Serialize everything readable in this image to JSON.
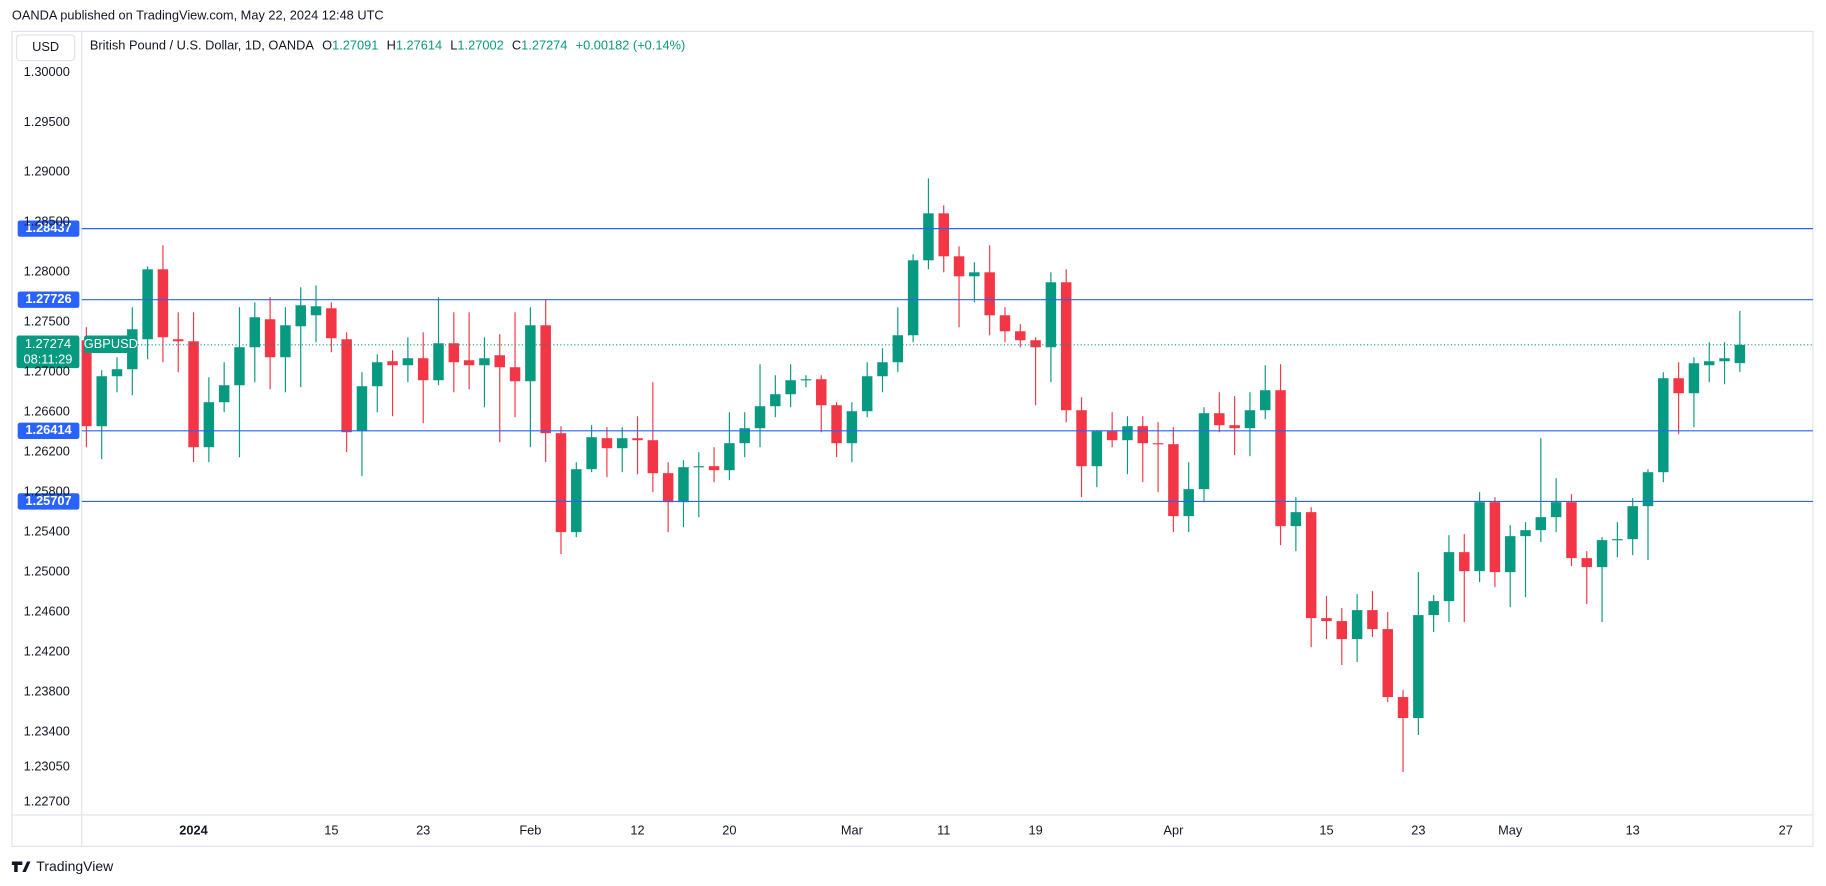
{
  "chart_data": {
    "type": "candlestick",
    "published": "OANDA published on TradingView.com, May 22, 2024 12:48 UTC",
    "currency": "USD",
    "title": "British Pound / U.S. Dollar, 1D, OANDA",
    "ohlc_labels": [
      "O",
      "H",
      "L",
      "C"
    ],
    "change": "+0.00182 (+0.14%)",
    "symbol": "GBPUSD",
    "countdown": "08:11:29",
    "brand": "TradingView",
    "up_color": "#089981",
    "down_color": "#f23645",
    "level_color": "#2962ff",
    "categories": [
      null,
      null,
      null,
      null,
      null,
      null,
      null,
      "2024",
      null,
      null,
      null,
      null,
      null,
      null,
      null,
      null,
      "15",
      null,
      null,
      null,
      null,
      null,
      "23",
      null,
      null,
      null,
      null,
      null,
      null,
      "Feb",
      null,
      null,
      null,
      null,
      null,
      null,
      "12",
      null,
      null,
      null,
      null,
      null,
      "20",
      null,
      null,
      null,
      null,
      null,
      null,
      null,
      "Mar",
      null,
      null,
      null,
      null,
      null,
      "11",
      null,
      null,
      null,
      null,
      null,
      "19",
      null,
      null,
      null,
      null,
      null,
      null,
      null,
      null,
      "Apr",
      null,
      null,
      null,
      null,
      null,
      null,
      null,
      null,
      null,
      "15",
      null,
      null,
      null,
      null,
      null,
      "23",
      null,
      null,
      null,
      null,
      null,
      "May",
      null,
      null,
      null,
      null,
      null,
      null,
      null,
      "13",
      null,
      null,
      null,
      null,
      null,
      null,
      null,
      null,
      null,
      "27"
    ],
    "open": [
      1.2732,
      1.2646,
      1.2696,
      1.2703,
      1.2733,
      1.2803,
      1.2733,
      1.2731,
      1.2625,
      1.267,
      1.2687,
      1.2725,
      1.2753,
      1.2715,
      1.2746,
      1.2757,
      1.2764,
      1.2733,
      1.2641,
      1.2686,
      1.2711,
      1.2707,
      1.2714,
      1.2692,
      1.2729,
      1.2712,
      1.2707,
      1.2717,
      1.2705,
      1.2691,
      1.2747,
      1.2639,
      1.254,
      1.2603,
      1.2634,
      1.2624,
      1.2634,
      1.2632,
      1.2599,
      1.257,
      1.2605,
      1.2606,
      1.2602,
      1.2629,
      1.2644,
      1.2666,
      1.2678,
      1.2692,
      1.2693,
      1.2667,
      1.2629,
      1.2661,
      1.2696,
      1.271,
      1.2737,
      1.2812,
      1.2859,
      1.2816,
      1.2796,
      1.28,
      1.2757,
      1.2741,
      1.2732,
      1.2725,
      1.279,
      1.2662,
      1.2606,
      1.2641,
      1.2632,
      1.2646,
      1.2629,
      1.2628,
      1.2556,
      1.2583,
      1.2659,
      1.2647,
      1.2644,
      1.2662,
      1.2682,
      1.2546,
      1.256,
      1.2454,
      1.2451,
      1.2433,
      1.2462,
      1.2443,
      1.2375,
      1.2354,
      1.2457,
      1.2471,
      1.252,
      1.2501,
      1.257,
      1.25,
      1.2536,
      1.2542,
      1.2555,
      1.257,
      1.2514,
      1.2505,
      1.2532,
      1.2533,
      1.2566,
      1.26,
      1.2694,
      1.2679,
      1.2707,
      1.2711,
      1.27091,
      null,
      null,
      null
    ],
    "high": [
      1.2745,
      1.2702,
      1.2715,
      1.2765,
      1.2806,
      1.2827,
      1.276,
      1.276,
      1.2695,
      1.271,
      1.2765,
      1.277,
      1.2775,
      1.2765,
      1.2785,
      1.2787,
      1.277,
      1.274,
      1.27,
      1.2718,
      1.2722,
      1.2735,
      1.274,
      1.2775,
      1.276,
      1.276,
      1.2735,
      1.2738,
      1.276,
      1.2765,
      1.2773,
      1.2646,
      1.261,
      1.2647,
      1.2645,
      1.2645,
      1.2656,
      1.269,
      1.261,
      1.2612,
      1.262,
      1.2625,
      1.266,
      1.266,
      1.2708,
      1.2697,
      1.2708,
      1.2697,
      1.2697,
      1.267,
      1.267,
      1.271,
      1.2724,
      1.2765,
      1.2818,
      1.2894,
      1.2867,
      1.2826,
      1.281,
      1.2827,
      1.2765,
      1.2748,
      1.2735,
      1.28,
      1.2803,
      1.2675,
      1.2642,
      1.266,
      1.2656,
      1.2656,
      1.265,
      1.2645,
      1.261,
      1.2665,
      1.268,
      1.2676,
      1.268,
      1.2707,
      1.2708,
      1.2575,
      1.2565,
      1.2476,
      1.2464,
      1.2478,
      1.2481,
      1.246,
      1.2382,
      1.25,
      1.2477,
      1.2537,
      1.2538,
      1.258,
      1.2575,
      1.2547,
      1.255,
      1.2634,
      1.2594,
      1.2578,
      1.2521,
      1.2535,
      1.255,
      1.2574,
      1.2603,
      1.27,
      1.271,
      1.2715,
      1.273,
      1.273,
      1.27614,
      null,
      null,
      null
    ],
    "low": [
      1.2625,
      1.2613,
      1.268,
      1.2677,
      1.2713,
      1.271,
      1.27,
      1.261,
      1.261,
      1.266,
      1.2615,
      1.269,
      1.2683,
      1.268,
      1.2685,
      1.273,
      1.272,
      1.262,
      1.2596,
      1.266,
      1.2656,
      1.269,
      1.2649,
      1.2687,
      1.268,
      1.2683,
      1.2665,
      1.263,
      1.2655,
      1.2625,
      1.261,
      1.2518,
      1.2535,
      1.26,
      1.2595,
      1.26,
      1.2598,
      1.258,
      1.254,
      1.2545,
      1.2555,
      1.259,
      1.2592,
      1.2615,
      1.2625,
      1.2655,
      1.2665,
      1.2685,
      1.264,
      1.2615,
      1.261,
      1.2655,
      1.268,
      1.27,
      1.273,
      1.2803,
      1.28,
      1.2745,
      1.277,
      1.2737,
      1.273,
      1.2725,
      1.2667,
      1.269,
      1.265,
      1.2575,
      1.2585,
      1.2625,
      1.2598,
      1.259,
      1.258,
      1.254,
      1.254,
      1.257,
      1.264,
      1.2617,
      1.2616,
      1.2653,
      1.2527,
      1.2521,
      1.2425,
      1.2433,
      1.2407,
      1.241,
      1.2435,
      1.237,
      1.23,
      1.2337,
      1.244,
      1.245,
      1.245,
      1.249,
      1.2485,
      1.2465,
      1.2475,
      1.253,
      1.254,
      1.2506,
      1.2468,
      1.245,
      1.2515,
      1.2517,
      1.2512,
      1.259,
      1.2638,
      1.2645,
      1.269,
      1.2688,
      1.27002,
      null,
      null,
      null
    ],
    "close": [
      1.2646,
      1.2696,
      1.2703,
      1.2743,
      1.2803,
      1.2735,
      1.2731,
      1.2625,
      1.267,
      1.2687,
      1.2725,
      1.2755,
      1.2715,
      1.2747,
      1.2767,
      1.2766,
      1.2734,
      1.264,
      1.2686,
      1.271,
      1.2707,
      1.2714,
      1.2692,
      1.2729,
      1.271,
      1.2707,
      1.2714,
      1.2705,
      1.2691,
      1.2747,
      1.2639,
      1.254,
      1.2603,
      1.2635,
      1.2624,
      1.2634,
      1.2632,
      1.2599,
      1.257,
      1.2605,
      1.2606,
      1.2602,
      1.2629,
      1.2644,
      1.2666,
      1.2678,
      1.2692,
      1.2693,
      1.2667,
      1.2629,
      1.2661,
      1.2696,
      1.271,
      1.2737,
      1.2812,
      1.2859,
      1.2816,
      1.2796,
      1.28,
      1.2757,
      1.2741,
      1.2732,
      1.2725,
      1.279,
      1.2662,
      1.2606,
      1.2641,
      1.2632,
      1.2646,
      1.2629,
      1.2628,
      1.2556,
      1.2583,
      1.2659,
      1.2647,
      1.2644,
      1.2662,
      1.2682,
      1.2546,
      1.256,
      1.2454,
      1.2451,
      1.2433,
      1.2462,
      1.2443,
      1.2375,
      1.2354,
      1.2457,
      1.2471,
      1.252,
      1.2501,
      1.257,
      1.25,
      1.2536,
      1.2542,
      1.2555,
      1.257,
      1.2514,
      1.2505,
      1.2532,
      1.2533,
      1.2566,
      1.26,
      1.2694,
      1.2679,
      1.2709,
      1.2711,
      1.2714,
      1.27274,
      null,
      null,
      null
    ],
    "levels": [
      1.28437,
      1.27726,
      1.26414,
      1.25707
    ],
    "ylim": [
      1.2257,
      1.3041
    ],
    "yticks": [
      {
        "value": 1.3,
        "label": "1.30000"
      },
      {
        "value": 1.295,
        "label": "1.29500"
      },
      {
        "value": 1.29,
        "label": "1.29000"
      },
      {
        "value": 1.285,
        "label": "1.28500"
      },
      {
        "value": 1.28,
        "label": "1.28000"
      },
      {
        "value": 1.275,
        "label": "1.27500"
      },
      {
        "value": 1.27,
        "label": "1.27000"
      },
      {
        "value": 1.266,
        "label": "1.26600"
      },
      {
        "value": 1.262,
        "label": "1.26200"
      },
      {
        "value": 1.258,
        "label": "1.25800"
      },
      {
        "value": 1.254,
        "label": "1.25400"
      },
      {
        "value": 1.25,
        "label": "1.25000"
      },
      {
        "value": 1.246,
        "label": "1.24600"
      },
      {
        "value": 1.242,
        "label": "1.24200"
      },
      {
        "value": 1.238,
        "label": "1.23800"
      },
      {
        "value": 1.234,
        "label": "1.23400"
      },
      {
        "value": 1.2305,
        "label": "1.23050"
      },
      {
        "value": 1.227,
        "label": "1.22700"
      }
    ]
  }
}
